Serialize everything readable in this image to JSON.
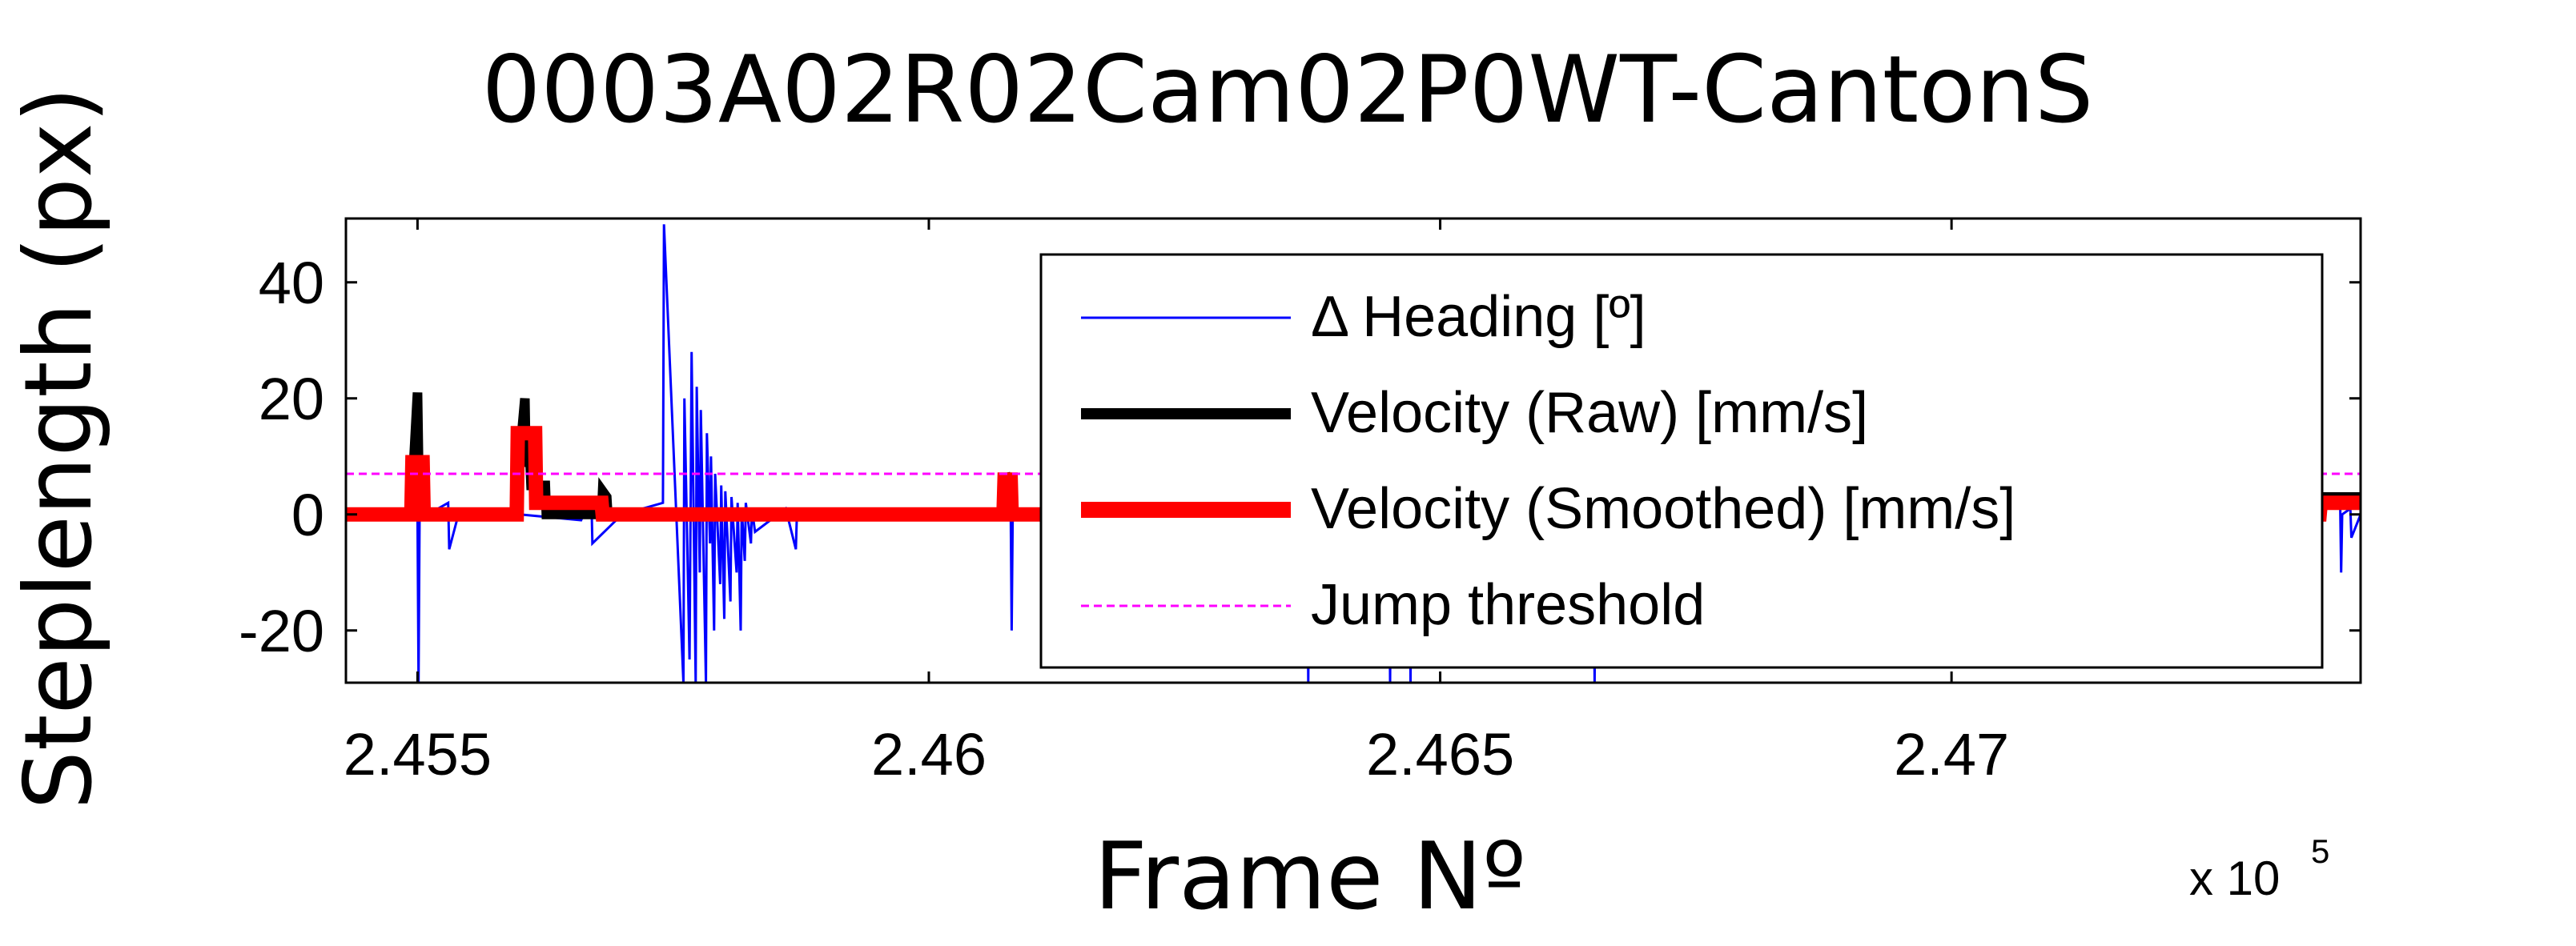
{
  "chart_data": {
    "type": "line",
    "title": "0003A02R02Cam02P0WT-CantonS",
    "xlabel": "Frame Nº",
    "ylabel": "Steplength (px)",
    "x_exponent_label": "x 10",
    "x_exponent_power": "5",
    "xlim": [
      245430,
      247400
    ],
    "ylim": [
      -29,
      51
    ],
    "x_ticks": [
      245500,
      246000,
      246500,
      247000
    ],
    "x_tick_labels": [
      "2.455",
      "2.46",
      "2.465",
      "2.47"
    ],
    "y_ticks": [
      -20,
      0,
      20,
      40
    ],
    "y_tick_labels": [
      "-20",
      "0",
      "20",
      "40"
    ],
    "grid": false,
    "legend_position": "top-right",
    "jump_threshold": 7,
    "series": [
      {
        "name": "Δ Heading [º]",
        "color": "#0000ff",
        "style": "solid-thin",
        "x": [
          245430,
          245480,
          245500,
          245501,
          245502,
          245520,
          245530,
          245531,
          245540,
          245560,
          245600,
          245660,
          245670,
          245671,
          245700,
          245740,
          245741,
          245760,
          245761,
          245766,
          245767,
          245768,
          245772,
          245773,
          245776,
          245777,
          245782,
          245783,
          245786,
          245787,
          245790,
          245791,
          245796,
          245797,
          245800,
          245801,
          245806,
          245807,
          245812,
          245813,
          245816,
          245817,
          245820,
          245821,
          245826,
          245827,
          245830,
          245860,
          245870,
          245871,
          245900,
          245950,
          246000,
          246080,
          246081,
          246082,
          246100,
          246200,
          246300,
          246370,
          246371,
          246372,
          246400,
          246450,
          246451,
          246452,
          246470,
          246471,
          246472,
          246500,
          246650,
          246651,
          246652,
          246700,
          247000,
          247250,
          247380,
          247381,
          247382,
          247390,
          247391,
          247400
        ],
        "values": [
          0,
          0,
          0,
          -29,
          0,
          1,
          2,
          -6,
          0,
          1,
          0,
          -1,
          3,
          -5,
          0,
          2,
          50,
          -29,
          20,
          -25,
          0,
          28,
          -29,
          22,
          -10,
          18,
          -29,
          14,
          -5,
          10,
          -20,
          7,
          -12,
          5,
          -18,
          4,
          -15,
          3,
          -10,
          2,
          -20,
          1,
          -8,
          2,
          -5,
          1,
          -3,
          1,
          -6,
          0,
          1,
          -1,
          0,
          1,
          -20,
          0,
          0,
          0,
          0,
          0,
          -29,
          0,
          0,
          0,
          -29,
          0,
          0,
          -29,
          0,
          0,
          0,
          -29,
          0,
          0,
          0,
          1,
          2,
          -10,
          0,
          1,
          -4,
          0
        ]
      },
      {
        "name": "Velocity (Raw) [mm/s]",
        "color": "#000000",
        "style": "solid-thick",
        "x": [
          245430,
          245495,
          245496,
          245500,
          245501,
          245505,
          245506,
          245598,
          245599,
          245605,
          245606,
          245610,
          245611,
          245625,
          245626,
          245680,
          245681,
          245685,
          245686,
          246074,
          246075,
          246080,
          246081,
          247360,
          247361,
          247400
        ],
        "values": [
          0,
          0,
          8,
          21,
          9,
          8,
          0,
          0,
          8,
          20,
          9,
          9,
          5,
          5,
          0,
          0,
          4,
          3,
          0,
          0,
          7,
          5,
          0,
          0,
          3,
          3
        ]
      },
      {
        "name": "Velocity (Smoothed) [mm/s]",
        "color": "#ff0000",
        "style": "solid-thicker",
        "x": [
          245430,
          245494,
          245495,
          245505,
          245506,
          245597,
          245598,
          245615,
          245616,
          245680,
          245681,
          246073,
          246074,
          246080,
          246081,
          247360,
          247361,
          247400
        ],
        "values": [
          0,
          0,
          9,
          9,
          0,
          0,
          14,
          14,
          2,
          2,
          0,
          0,
          6,
          6,
          0,
          0,
          2,
          2
        ]
      },
      {
        "name": "Jump threshold",
        "color": "#ff00ff",
        "style": "dashed",
        "x": [
          245430,
          247400
        ],
        "values": [
          7,
          7
        ]
      }
    ]
  }
}
